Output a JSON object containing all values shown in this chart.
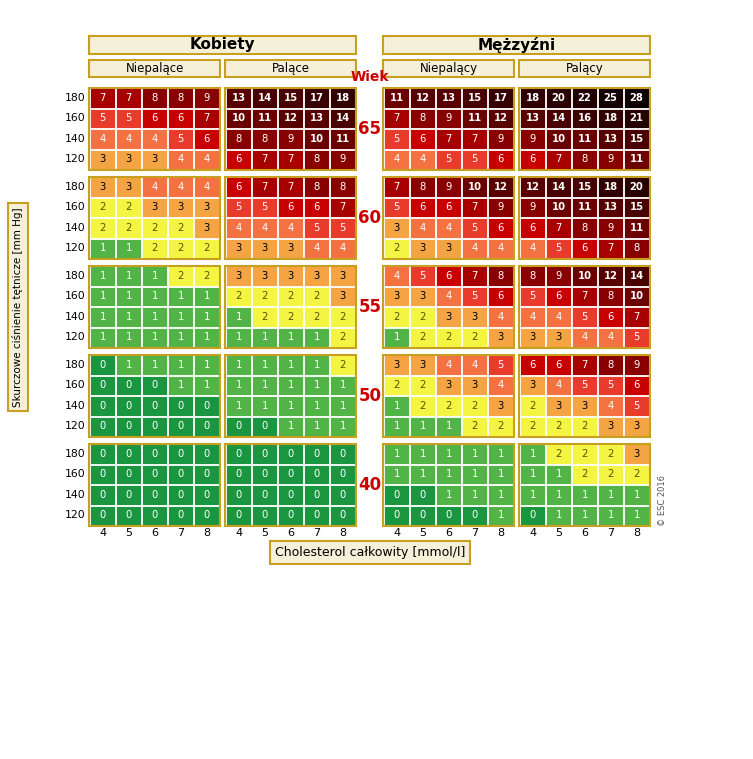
{
  "title_women": "Kobiety",
  "title_men": "Mężzyźni",
  "subtitle_nonsmoker_w": "Niepalące",
  "subtitle_smoker_w": "Palące",
  "subtitle_nonsmoker_m": "Niepalący",
  "subtitle_smoker_m": "Palący",
  "age_label": "Wiek",
  "ylabel": "Skurczowe ciśnienie tętnicze [mm Hg]",
  "xlabel": "Cholesterol całkowity [mmol/l]",
  "ages": [
    65,
    60,
    55,
    50,
    40
  ],
  "bp_rows": [
    180,
    160,
    140,
    120
  ],
  "chol_cols": [
    4,
    5,
    6,
    7,
    8
  ],
  "sections": {
    "women_nonsmoker": [
      [
        [
          7,
          7,
          8,
          8,
          9
        ],
        [
          5,
          5,
          6,
          6,
          7
        ],
        [
          4,
          4,
          4,
          5,
          6
        ],
        [
          3,
          3,
          3,
          4,
          4
        ]
      ],
      [
        [
          3,
          3,
          4,
          4,
          4
        ],
        [
          2,
          2,
          3,
          3,
          3
        ],
        [
          2,
          2,
          2,
          2,
          3
        ],
        [
          1,
          1,
          2,
          2,
          2
        ]
      ],
      [
        [
          1,
          1,
          1,
          2,
          2
        ],
        [
          1,
          1,
          1,
          1,
          1
        ],
        [
          1,
          1,
          1,
          1,
          1
        ],
        [
          1,
          1,
          1,
          1,
          1
        ]
      ],
      [
        [
          0,
          1,
          1,
          1,
          1
        ],
        [
          0,
          0,
          0,
          1,
          1
        ],
        [
          0,
          0,
          0,
          0,
          0
        ],
        [
          0,
          0,
          0,
          0,
          0
        ]
      ],
      [
        [
          0,
          0,
          0,
          0,
          0
        ],
        [
          0,
          0,
          0,
          0,
          0
        ],
        [
          0,
          0,
          0,
          0,
          0
        ],
        [
          0,
          0,
          0,
          0,
          0
        ]
      ]
    ],
    "women_smoker": [
      [
        [
          13,
          14,
          15,
          17,
          18
        ],
        [
          10,
          11,
          12,
          13,
          14
        ],
        [
          8,
          8,
          9,
          10,
          11
        ],
        [
          6,
          7,
          7,
          8,
          9
        ]
      ],
      [
        [
          6,
          7,
          7,
          8,
          8
        ],
        [
          5,
          5,
          6,
          6,
          7
        ],
        [
          4,
          4,
          4,
          5,
          5
        ],
        [
          3,
          3,
          3,
          4,
          4
        ]
      ],
      [
        [
          3,
          3,
          3,
          3,
          3
        ],
        [
          2,
          2,
          2,
          2,
          3
        ],
        [
          1,
          2,
          2,
          2,
          2
        ],
        [
          1,
          1,
          1,
          1,
          2
        ]
      ],
      [
        [
          1,
          1,
          1,
          1,
          2
        ],
        [
          1,
          1,
          1,
          1,
          1
        ],
        [
          1,
          1,
          1,
          1,
          1
        ],
        [
          0,
          0,
          1,
          1,
          1
        ]
      ],
      [
        [
          0,
          0,
          0,
          0,
          0
        ],
        [
          0,
          0,
          0,
          0,
          0
        ],
        [
          0,
          0,
          0,
          0,
          0
        ],
        [
          0,
          0,
          0,
          0,
          0
        ]
      ]
    ],
    "men_nonsmoker": [
      [
        [
          11,
          12,
          13,
          15,
          17
        ],
        [
          7,
          8,
          9,
          11,
          12
        ],
        [
          5,
          6,
          7,
          7,
          9
        ],
        [
          4,
          4,
          5,
          5,
          6
        ]
      ],
      [
        [
          7,
          8,
          9,
          10,
          12
        ],
        [
          5,
          6,
          6,
          7,
          9
        ],
        [
          3,
          4,
          4,
          5,
          6
        ],
        [
          2,
          3,
          3,
          4,
          4
        ]
      ],
      [
        [
          4,
          5,
          6,
          7,
          8
        ],
        [
          3,
          3,
          4,
          5,
          6
        ],
        [
          2,
          2,
          3,
          3,
          4
        ],
        [
          1,
          2,
          2,
          2,
          3
        ]
      ],
      [
        [
          3,
          3,
          4,
          4,
          5
        ],
        [
          2,
          2,
          3,
          3,
          4
        ],
        [
          1,
          2,
          2,
          2,
          3
        ],
        [
          1,
          1,
          1,
          2,
          2
        ]
      ],
      [
        [
          1,
          1,
          1,
          1,
          1
        ],
        [
          1,
          1,
          1,
          1,
          1
        ],
        [
          0,
          0,
          1,
          1,
          1
        ],
        [
          0,
          0,
          0,
          0,
          1
        ]
      ]
    ],
    "men_smoker": [
      [
        [
          18,
          20,
          22,
          25,
          28
        ],
        [
          13,
          14,
          16,
          18,
          21
        ],
        [
          9,
          10,
          11,
          13,
          15
        ],
        [
          6,
          7,
          8,
          9,
          11
        ]
      ],
      [
        [
          12,
          14,
          15,
          18,
          20
        ],
        [
          9,
          10,
          11,
          13,
          15
        ],
        [
          6,
          7,
          8,
          9,
          11
        ],
        [
          4,
          5,
          6,
          7,
          8
        ]
      ],
      [
        [
          8,
          9,
          10,
          12,
          14
        ],
        [
          5,
          6,
          7,
          8,
          10
        ],
        [
          4,
          4,
          5,
          6,
          7
        ],
        [
          3,
          3,
          4,
          4,
          5
        ]
      ],
      [
        [
          6,
          6,
          7,
          8,
          9
        ],
        [
          3,
          4,
          5,
          5,
          6
        ],
        [
          2,
          3,
          3,
          4,
          5
        ],
        [
          2,
          2,
          2,
          3,
          3
        ]
      ],
      [
        [
          1,
          2,
          2,
          2,
          3
        ],
        [
          1,
          1,
          2,
          2,
          2
        ],
        [
          1,
          1,
          1,
          1,
          1
        ],
        [
          0,
          1,
          1,
          1,
          1
        ]
      ]
    ]
  },
  "background": "#ffffff",
  "age_color": "#cc0000",
  "header_bg": "#f5f0d8",
  "header_border": "#c8a020",
  "cell_border": "#ffffff"
}
